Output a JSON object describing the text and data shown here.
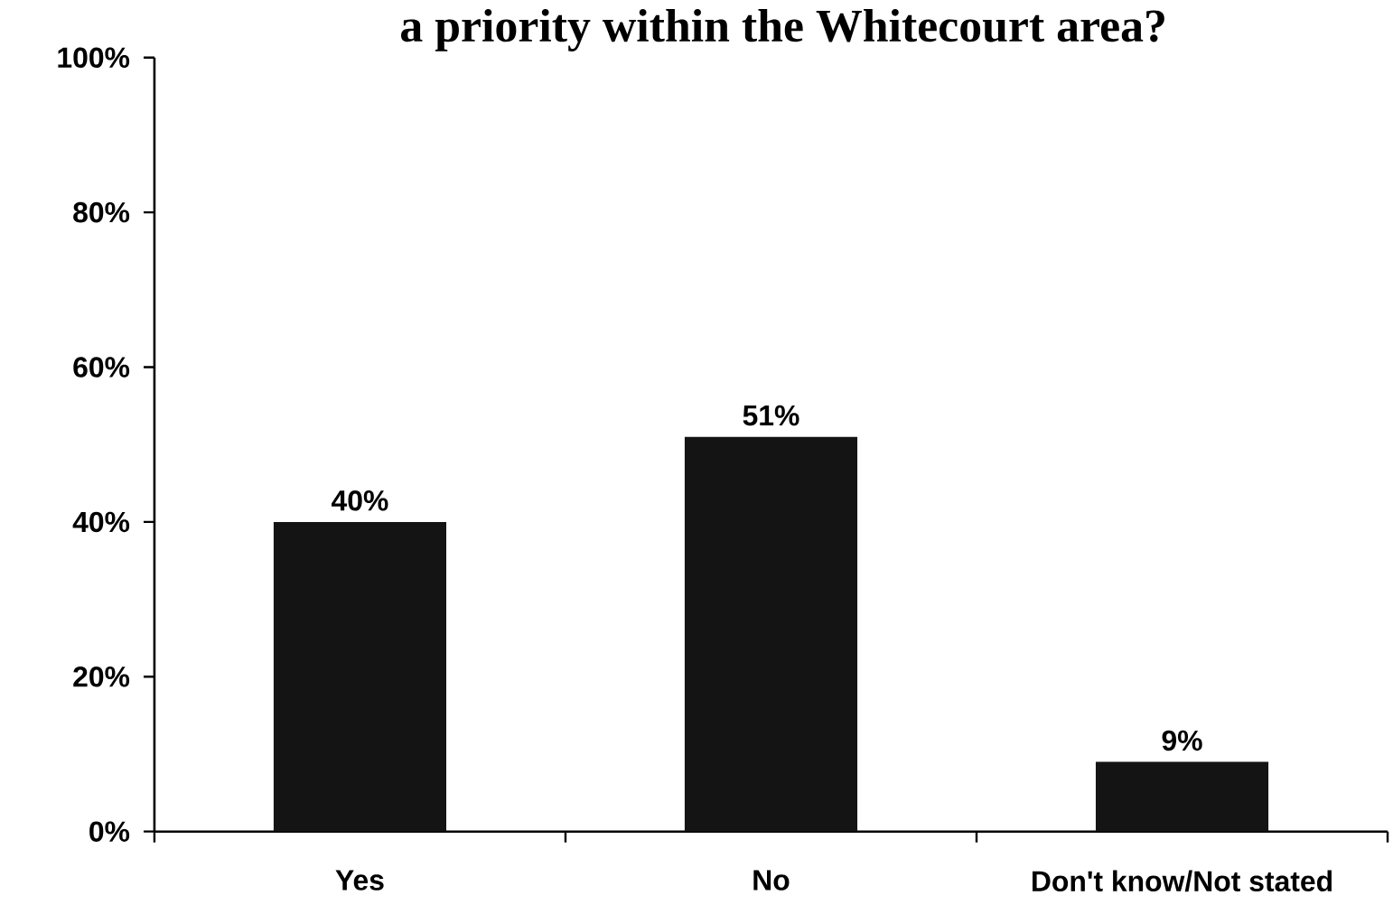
{
  "chart_data": {
    "type": "bar",
    "title": "a priority within the Whitecourt area?",
    "categories": [
      "Yes",
      "No",
      "Don't know/Not stated"
    ],
    "values": [
      40,
      51,
      9
    ],
    "value_labels": [
      "40%",
      "51%",
      "9%"
    ],
    "color": "#141414",
    "ylim": [
      0,
      100
    ],
    "yticks": [
      {
        "value": 0,
        "label": "0%"
      },
      {
        "value": 20,
        "label": "20%"
      },
      {
        "value": 40,
        "label": "40%"
      },
      {
        "value": 60,
        "label": "60%"
      },
      {
        "value": 80,
        "label": "80%"
      },
      {
        "value": 100,
        "label": "100%"
      }
    ]
  }
}
